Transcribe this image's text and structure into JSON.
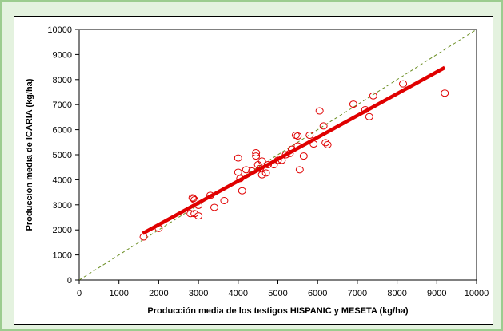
{
  "chart_data": {
    "type": "scatter",
    "xlabel": "Producción media de los testigos HISPANIC y MESETA (kg/ha)",
    "ylabel": "Producción media de ICARIA  (kg/ha)",
    "xlim": [
      0,
      10000
    ],
    "ylim": [
      0,
      10000
    ],
    "x_ticks": [
      0,
      1000,
      2000,
      3000,
      4000,
      5000,
      6000,
      7000,
      8000,
      9000,
      10000
    ],
    "y_ticks": [
      0,
      1000,
      2000,
      3000,
      4000,
      5000,
      6000,
      7000,
      8000,
      9000,
      10000
    ],
    "grid": false,
    "colors": {
      "points": "#e00000",
      "regression": "#e00000",
      "reference": "#6b8e23"
    },
    "points": [
      [
        1620,
        1720
      ],
      [
        2000,
        2060
      ],
      [
        2800,
        2650
      ],
      [
        2900,
        2650
      ],
      [
        2850,
        3280
      ],
      [
        2900,
        3200
      ],
      [
        2870,
        3250
      ],
      [
        3000,
        2980
      ],
      [
        3000,
        2560
      ],
      [
        3300,
        3380
      ],
      [
        3400,
        2900
      ],
      [
        3650,
        3170
      ],
      [
        4000,
        4870
      ],
      [
        4000,
        4300
      ],
      [
        4050,
        4050
      ],
      [
        4100,
        3560
      ],
      [
        4200,
        4400
      ],
      [
        4350,
        4350
      ],
      [
        4450,
        5080
      ],
      [
        4450,
        4950
      ],
      [
        4500,
        4600
      ],
      [
        4550,
        4450
      ],
      [
        4600,
        4750
      ],
      [
        4600,
        4200
      ],
      [
        4700,
        4270
      ],
      [
        4750,
        4600
      ],
      [
        4900,
        4600
      ],
      [
        5000,
        4780
      ],
      [
        5100,
        4780
      ],
      [
        5200,
        5000
      ],
      [
        5300,
        5050
      ],
      [
        5350,
        5220
      ],
      [
        5450,
        5780
      ],
      [
        5500,
        5750
      ],
      [
        5500,
        5350
      ],
      [
        5550,
        4400
      ],
      [
        5650,
        4950
      ],
      [
        5800,
        5780
      ],
      [
        5900,
        5430
      ],
      [
        6050,
        6750
      ],
      [
        6150,
        6150
      ],
      [
        6200,
        5480
      ],
      [
        6250,
        5400
      ],
      [
        6900,
        7020
      ],
      [
        7200,
        6800
      ],
      [
        7300,
        6520
      ],
      [
        7400,
        7350
      ],
      [
        8150,
        7830
      ],
      [
        9200,
        7460
      ]
    ],
    "regression_line": [
      [
        1600,
        1860
      ],
      [
        9200,
        8480
      ]
    ],
    "reference_line": [
      [
        0,
        0
      ],
      [
        10000,
        10000
      ]
    ]
  }
}
